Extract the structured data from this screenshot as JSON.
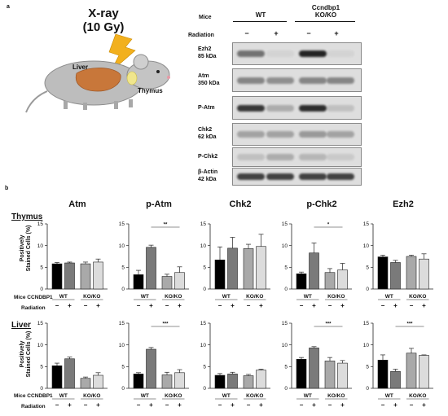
{
  "panel_a": {
    "letter": "a",
    "xray_title_line1": "X-ray",
    "xray_title_line2": "(10 Gy)",
    "organ_liver": "Liver",
    "organ_thymus": "Thymus",
    "header_mice": "Mice",
    "header_wt": "WT",
    "header_ko_line1": "Ccndbp1",
    "header_ko_line2": "KO/KO",
    "header_radiation": "Radiation",
    "minus": "−",
    "plus": "+",
    "blots": [
      {
        "name_line1": "Ezh2",
        "name_line2": "85 kDa",
        "intensity": [
          0.55,
          0.05,
          0.95,
          0.05
        ]
      },
      {
        "name_line1": "Atm",
        "name_line2": "350 kDa",
        "intensity": [
          0.45,
          0.4,
          0.45,
          0.45
        ]
      },
      {
        "name_line1": "P-Atm",
        "name_line2": "",
        "intensity": [
          0.85,
          0.25,
          0.9,
          0.15
        ]
      },
      {
        "name_line1": "Chk2",
        "name_line2": "62 kDa",
        "intensity": [
          0.3,
          0.3,
          0.35,
          0.3
        ]
      },
      {
        "name_line1": "P-Chk2",
        "name_line2": "",
        "intensity": [
          0.15,
          0.25,
          0.2,
          0.1
        ]
      },
      {
        "name_line1": "β-Actin",
        "name_line2": "42 kDa",
        "intensity": [
          0.8,
          0.8,
          0.8,
          0.8
        ]
      }
    ],
    "colors": {
      "band": "#1a1a1a",
      "strip_bg": "#dedede",
      "mouse_body": "#bdbdbd",
      "liver": "#c8773a",
      "thymus": "#f0e68c",
      "bolt": "#f2b01e"
    }
  },
  "panel_b": {
    "letter": "b",
    "row_titles": [
      "Thymus",
      "Liver"
    ],
    "y_label_line1": "Positively",
    "y_label_line2": "Stained Cells (%)",
    "group_label_mice": "Mice CCNDBP1",
    "group_label_radiation": "Radiation",
    "group_wt": "WT",
    "group_ko": "KO/KO",
    "minus": "−",
    "plus": "+",
    "column_titles": [
      "Atm",
      "p-Atm",
      "Chk2",
      "p-Chk2",
      "Ezh2"
    ],
    "bar_colors": [
      "#000000",
      "#7a7a7a",
      "#a9a9a9",
      "#dcdcdc"
    ]
  },
  "chart_data": [
    {
      "type": "bar",
      "row": "Thymus",
      "title": "Atm",
      "ylim": [
        0,
        15
      ],
      "yticks": [
        0,
        5,
        10,
        15
      ],
      "values": [
        5.8,
        6.0,
        5.8,
        6.2
      ],
      "errors": [
        0.3,
        0.2,
        0.4,
        0.7
      ],
      "sig": ""
    },
    {
      "type": "bar",
      "row": "Thymus",
      "title": "p-Atm",
      "ylim": [
        0,
        15
      ],
      "yticks": [
        0,
        5,
        10,
        15
      ],
      "values": [
        3.3,
        9.6,
        2.9,
        3.8
      ],
      "errors": [
        1.0,
        0.5,
        0.5,
        1.3
      ],
      "sig": "**"
    },
    {
      "type": "bar",
      "row": "Thymus",
      "title": "Chk2",
      "ylim": [
        0,
        15
      ],
      "yticks": [
        0,
        5,
        10,
        15
      ],
      "values": [
        6.7,
        9.4,
        9.3,
        9.8
      ],
      "errors": [
        3.0,
        2.5,
        1.0,
        2.8
      ],
      "sig": ""
    },
    {
      "type": "bar",
      "row": "Thymus",
      "title": "p-Chk2",
      "ylim": [
        0,
        15
      ],
      "yticks": [
        0,
        5,
        10,
        15
      ],
      "values": [
        3.5,
        8.3,
        3.8,
        4.4
      ],
      "errors": [
        0.4,
        2.3,
        0.9,
        1.5
      ],
      "sig": "*"
    },
    {
      "type": "bar",
      "row": "Thymus",
      "title": "Ezh2",
      "ylim": [
        0,
        15
      ],
      "yticks": [
        0,
        5,
        10,
        15
      ],
      "values": [
        7.4,
        6.1,
        7.5,
        6.9
      ],
      "errors": [
        0.4,
        0.5,
        0.3,
        1.2
      ],
      "sig": ""
    },
    {
      "type": "bar",
      "row": "Liver",
      "title": "Atm",
      "ylim": [
        0,
        15
      ],
      "yticks": [
        0,
        5,
        10,
        15
      ],
      "values": [
        5.2,
        6.8,
        2.3,
        3.0
      ],
      "errors": [
        0.6,
        0.4,
        0.3,
        0.6
      ],
      "sig": ""
    },
    {
      "type": "bar",
      "row": "Liver",
      "title": "p-Atm",
      "ylim": [
        0,
        15
      ],
      "yticks": [
        0,
        5,
        10,
        15
      ],
      "values": [
        3.3,
        9.0,
        3.1,
        3.6
      ],
      "errors": [
        0.3,
        0.4,
        0.6,
        0.7
      ],
      "sig": "***"
    },
    {
      "type": "bar",
      "row": "Liver",
      "title": "Chk2",
      "ylim": [
        0,
        15
      ],
      "yticks": [
        0,
        5,
        10,
        15
      ],
      "values": [
        3.0,
        3.3,
        2.9,
        4.2
      ],
      "errors": [
        0.4,
        0.4,
        0.3,
        0.2
      ],
      "sig": ""
    },
    {
      "type": "bar",
      "row": "Liver",
      "title": "p-Chk2",
      "ylim": [
        0,
        15
      ],
      "yticks": [
        0,
        5,
        10,
        15
      ],
      "values": [
        6.7,
        9.3,
        6.3,
        5.8
      ],
      "errors": [
        0.4,
        0.3,
        0.8,
        0.6
      ],
      "sig": "***"
    },
    {
      "type": "bar",
      "row": "Liver",
      "title": "Ezh2",
      "ylim": [
        0,
        15
      ],
      "yticks": [
        0,
        5,
        10,
        15
      ],
      "values": [
        6.5,
        3.9,
        8.1,
        7.6
      ],
      "errors": [
        1.2,
        0.5,
        1.1,
        0.1
      ],
      "sig": "***"
    }
  ]
}
